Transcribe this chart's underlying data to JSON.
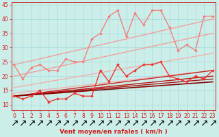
{
  "xlabel": "Vent moyen/en rafales ( km/h )",
  "bg_color": "#cceee8",
  "grid_color": "#aadddd",
  "xlim": [
    -0.3,
    23.3
  ],
  "ylim": [
    8,
    46
  ],
  "yticks": [
    10,
    15,
    20,
    25,
    30,
    35,
    40,
    45
  ],
  "xticks": [
    0,
    1,
    2,
    3,
    4,
    5,
    6,
    7,
    8,
    9,
    10,
    11,
    12,
    13,
    14,
    15,
    16,
    17,
    18,
    19,
    20,
    21,
    22,
    23
  ],
  "lines": [
    {
      "x": [
        0,
        1,
        2,
        3,
        4,
        5,
        6,
        7,
        8,
        9,
        10,
        11,
        12,
        13,
        14,
        15,
        16,
        17,
        18,
        19,
        20,
        21,
        22,
        23
      ],
      "y": [
        24,
        19,
        23,
        24,
        22,
        22,
        26,
        25,
        25,
        33,
        35,
        41,
        43,
        34,
        42,
        38,
        43,
        43,
        37,
        29,
        31,
        29,
        41,
        41
      ],
      "color": "#f08080",
      "linewidth": 1.0,
      "marker": "D",
      "markersize": 2.0,
      "zorder": 5
    },
    {
      "x": [
        0,
        23
      ],
      "y": [
        24,
        40
      ],
      "color": "#f0a0a0",
      "linewidth": 1.0,
      "marker": null,
      "markersize": 0,
      "zorder": 2
    },
    {
      "x": [
        0,
        23
      ],
      "y": [
        20,
        35
      ],
      "color": "#f0a0a0",
      "linewidth": 1.0,
      "marker": null,
      "markersize": 0,
      "zorder": 2
    },
    {
      "x": [
        0,
        23
      ],
      "y": [
        16,
        28
      ],
      "color": "#f0b0b0",
      "linewidth": 1.0,
      "marker": null,
      "markersize": 0,
      "zorder": 2
    },
    {
      "x": [
        0,
        23
      ],
      "y": [
        14,
        22
      ],
      "color": "#f0b0b0",
      "linewidth": 1.0,
      "marker": null,
      "markersize": 0,
      "zorder": 2
    },
    {
      "x": [
        0,
        1,
        2,
        3,
        4,
        5,
        6,
        7,
        8,
        9,
        10,
        11,
        12,
        13,
        14,
        15,
        16,
        17,
        18,
        19,
        20,
        21,
        22,
        23
      ],
      "y": [
        13,
        12,
        13,
        15,
        11,
        12,
        12,
        14,
        13,
        13,
        22,
        18,
        24,
        20,
        22,
        24,
        24,
        25,
        20,
        19,
        18,
        20,
        19,
        22
      ],
      "color": "#ee3333",
      "linewidth": 1.0,
      "marker": "D",
      "markersize": 2.0,
      "zorder": 6
    },
    {
      "x": [
        0,
        23
      ],
      "y": [
        13,
        22
      ],
      "color": "#cc2222",
      "linewidth": 1.0,
      "marker": null,
      "markersize": 0,
      "zorder": 3
    },
    {
      "x": [
        0,
        23
      ],
      "y": [
        13,
        20
      ],
      "color": "#bb1111",
      "linewidth": 1.0,
      "marker": null,
      "markersize": 0,
      "zorder": 3
    },
    {
      "x": [
        0,
        23
      ],
      "y": [
        13,
        19
      ],
      "color": "#aa1111",
      "linewidth": 1.0,
      "marker": null,
      "markersize": 0,
      "zorder": 3
    },
    {
      "x": [
        0,
        23
      ],
      "y": [
        13,
        18
      ],
      "color": "#880000",
      "linewidth": 1.2,
      "marker": null,
      "markersize": 0,
      "zorder": 3
    }
  ],
  "tick_fontsize": 5.5,
  "label_fontsize": 6.5,
  "tick_color": "#cc2222",
  "label_color": "#cc2222"
}
